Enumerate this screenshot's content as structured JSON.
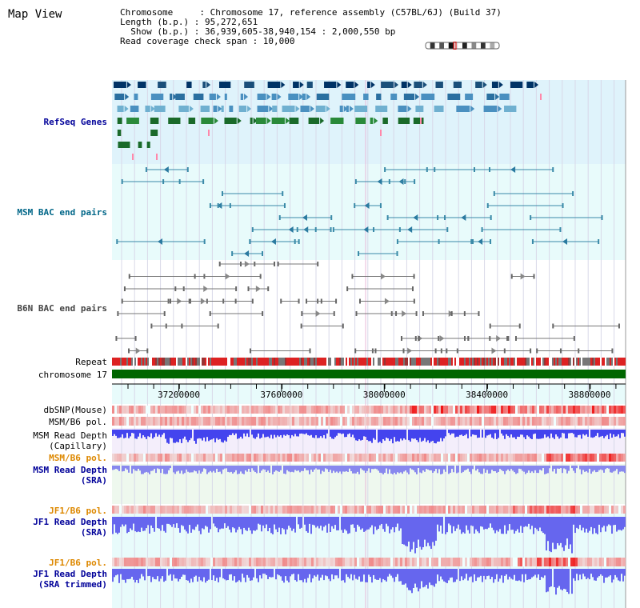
{
  "panel_title": "Map View",
  "info": {
    "line1": "Chromosome     : Chromosome 17, reference assembly (C57BL/6J) (Build 37)",
    "line2": "Length (b.p.) : 95,272,651",
    "line3": "  Show (b.p.) : 36,939,605-38,940,154 : 2,000,550 bp",
    "line4": "Read coverage check span : 10,000"
  },
  "tracks": {
    "refseq": "RefSeq Genes",
    "msm_bac": "MSM BAC end pairs",
    "b6n_bac": "B6N BAC end pairs",
    "repeat": "Repeat",
    "chromosome": "chromosome 17",
    "dbsnp": "dbSNP(Mouse)",
    "msm_pol1": "MSM/B6 pol.",
    "msm_depth_cap": "MSM Read Depth",
    "msm_depth_cap2": "(Capillary)",
    "msm_pol2": "MSM/B6 pol.",
    "msm_depth_sra": "MSM Read Depth",
    "msm_depth_sra2": "(SRA)",
    "jf1_pol1": "JF1/B6 pol.",
    "jf1_depth_sra": "JF1 Read Depth",
    "jf1_depth_sra2": "(SRA)",
    "jf1_pol2": "JF1/B6 pol.",
    "jf1_depth_trim": "JF1 Read Depth",
    "jf1_depth_trim2": "(SRA trimmed)"
  },
  "axis": {
    "ticks": [
      "37200000",
      "37600000",
      "38000000",
      "38400000",
      "38800000"
    ],
    "tick_values": [
      37200000,
      37600000,
      38000000,
      38400000,
      38800000
    ],
    "start": 36939605,
    "end": 38940154
  },
  "colors": {
    "track_label_blue": "#000099",
    "track_label_teal": "#006688",
    "track_label_gray": "#444444",
    "track_label_orange": "#dd8800",
    "refseq_bg": "#dff3fb",
    "msm_bg": "#e8fbfb",
    "chromosome_bar": "#006600",
    "depth_blue": "#3333ee"
  }
}
